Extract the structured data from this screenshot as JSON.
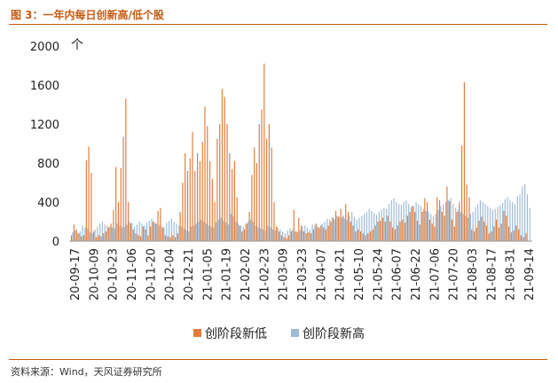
{
  "figure": {
    "title": "图 3：一年内每日创新高/低个股",
    "source": "资料来源：Wind，天风证券研究所"
  },
  "chart_data": {
    "type": "bar",
    "ylabel": "",
    "y_unit_label": "个",
    "ylim": [
      0,
      2000
    ],
    "yticks": [
      0,
      400,
      800,
      1200,
      1600,
      2000
    ],
    "xtick_labels": [
      "20-09-17",
      "20-10-09",
      "20-10-23",
      "20-11-06",
      "20-11-20",
      "20-12-04",
      "20-12-21",
      "21-01-05",
      "21-01-19",
      "21-02-02",
      "21-02-23",
      "21-03-09",
      "21-03-23",
      "21-04-07",
      "21-04-21",
      "21-05-10",
      "21-05-24",
      "21-06-07",
      "21-06-22",
      "21-07-06",
      "21-07-20",
      "21-08-03",
      "21-08-17",
      "21-08-31",
      "21-09-14"
    ],
    "legend_position": "bottom",
    "grid": false,
    "colors": {
      "low": "#e07b39",
      "high": "#9dbbd5"
    },
    "series": [
      {
        "name": "创阶段新低",
        "key": "low",
        "values": [
          60,
          170,
          120,
          80,
          50,
          60,
          830,
          970,
          700,
          100,
          40,
          60,
          50,
          80,
          100,
          140,
          180,
          320,
          760,
          400,
          750,
          1070,
          1460,
          400,
          180,
          120,
          80,
          60,
          50,
          150,
          120,
          60,
          150,
          200,
          180,
          310,
          340,
          140,
          60,
          50,
          40,
          60,
          40,
          80,
          300,
          600,
          900,
          720,
          850,
          1120,
          720,
          900,
          820,
          1020,
          1380,
          1180,
          820,
          640,
          400,
          1050,
          1200,
          1560,
          1480,
          1200,
          900,
          740,
          820,
          450,
          160,
          100,
          120,
          180,
          300,
          680,
          960,
          800,
          1200,
          1350,
          1820,
          1050,
          1200,
          960,
          400,
          150,
          100,
          60,
          40,
          30,
          60,
          100,
          320,
          100,
          240,
          160,
          100,
          80,
          90,
          80,
          120,
          180,
          140,
          160,
          140,
          120,
          160,
          200,
          240,
          310,
          250,
          330,
          260,
          380,
          300,
          200,
          160,
          100,
          120,
          100,
          80,
          60,
          80,
          100,
          120,
          160,
          200,
          210,
          240,
          200,
          260,
          200,
          140,
          120,
          160,
          200,
          220,
          190,
          260,
          300,
          360,
          300,
          210,
          170,
          300,
          440,
          400,
          220,
          180,
          150,
          450,
          420,
          300,
          260,
          560,
          410,
          220,
          150,
          300,
          400,
          980,
          1630,
          580,
          450,
          120,
          100,
          140,
          210,
          250,
          200,
          160,
          80,
          100,
          150,
          220,
          140,
          180,
          310,
          260,
          150,
          90,
          110,
          160,
          120,
          60,
          40,
          80
        ]
      },
      {
        "name": "创阶段新高",
        "key": "high",
        "values": [
          90,
          110,
          80,
          100,
          160,
          140,
          130,
          90,
          80,
          120,
          150,
          180,
          200,
          170,
          160,
          150,
          140,
          130,
          180,
          160,
          140,
          150,
          170,
          200,
          190,
          150,
          170,
          200,
          180,
          160,
          190,
          210,
          230,
          200,
          180,
          160,
          150,
          140,
          190,
          210,
          230,
          200,
          180,
          160,
          150,
          130,
          110,
          100,
          150,
          160,
          180,
          200,
          220,
          200,
          180,
          160,
          150,
          140,
          190,
          220,
          240,
          210,
          190,
          170,
          280,
          260,
          200,
          180,
          160,
          150,
          180,
          200,
          220,
          200,
          160,
          140,
          130,
          120,
          110,
          160,
          140,
          120,
          110,
          140,
          120,
          100,
          80,
          110,
          130,
          120,
          100,
          90,
          110,
          150,
          160,
          140,
          120,
          170,
          160,
          150,
          140,
          180,
          200,
          230,
          220,
          240,
          220,
          260,
          250,
          240,
          230,
          220,
          260,
          300,
          250,
          220,
          240,
          260,
          280,
          300,
          330,
          310,
          290,
          270,
          300,
          320,
          340,
          330,
          380,
          420,
          440,
          400,
          380,
          370,
          400,
          420,
          380,
          350,
          360,
          400,
          380,
          360,
          330,
          310,
          300,
          280,
          260,
          280,
          320,
          360,
          380,
          400,
          420,
          440,
          380,
          340,
          320,
          300,
          280,
          260,
          240,
          280,
          300,
          350,
          380,
          420,
          400,
          380,
          360,
          340,
          320,
          330,
          350,
          370,
          390,
          430,
          450,
          420,
          400,
          380,
          460,
          480,
          560,
          580,
          480,
          340
        ]
      }
    ]
  }
}
